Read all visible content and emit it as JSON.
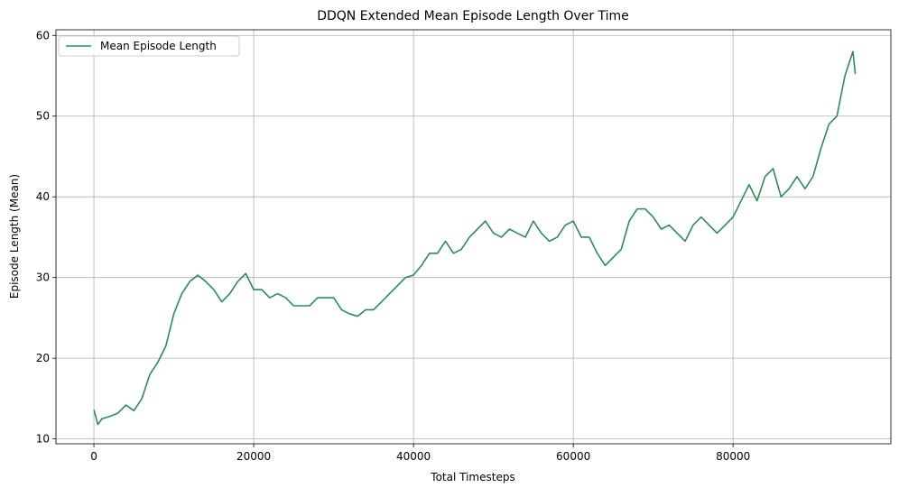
{
  "chart_data": {
    "type": "line",
    "title": "DDQN Extended Mean Episode Length Over Time",
    "x_label": "Total Timesteps",
    "y_label": "Episode Length (Mean)",
    "x": [
      0,
      500,
      1000,
      2000,
      3000,
      4000,
      5000,
      6000,
      7000,
      8000,
      9000,
      10000,
      11000,
      12000,
      13000,
      14000,
      15000,
      16000,
      17000,
      18000,
      19000,
      20000,
      21000,
      22000,
      23000,
      24000,
      25000,
      26000,
      27000,
      28000,
      29000,
      30000,
      31000,
      32000,
      33000,
      34000,
      35000,
      36000,
      37000,
      38000,
      39000,
      40000,
      41000,
      42000,
      43000,
      44000,
      45000,
      46000,
      47000,
      48000,
      49000,
      50000,
      51000,
      52000,
      53000,
      54000,
      55000,
      56000,
      57000,
      58000,
      59000,
      60000,
      61000,
      62000,
      63000,
      64000,
      65000,
      66000,
      67000,
      68000,
      69000,
      70000,
      71000,
      72000,
      73000,
      74000,
      75000,
      76000,
      77000,
      78000,
      79000,
      80000,
      81000,
      82000,
      83000,
      84000,
      85000,
      86000,
      87000,
      88000,
      89000,
      90000,
      91000,
      92000,
      93000,
      94000,
      95000,
      95300
    ],
    "series": [
      {
        "name": "Mean Episode Length",
        "color": "#2e8b57",
        "values": [
          13.6,
          11.8,
          12.5,
          12.8,
          13.2,
          14.2,
          13.5,
          15,
          18,
          19.5,
          21.5,
          25.5,
          28,
          29.5,
          30.3,
          29.5,
          28.5,
          27,
          28,
          29.5,
          30.5,
          28.5,
          28.5,
          27.5,
          28,
          27.5,
          26.5,
          26.5,
          26.5,
          27.5,
          27.5,
          27.5,
          26,
          25.5,
          25.2,
          26,
          26,
          27,
          28,
          29,
          30,
          30.3,
          31.5,
          33,
          33,
          34.5,
          33,
          33.5,
          35,
          36,
          37,
          35.5,
          35,
          36,
          35.5,
          35,
          37,
          35.5,
          34.5,
          35,
          36.5,
          37,
          35,
          35,
          33,
          31.5,
          32.5,
          33.5,
          37,
          38.5,
          38.5,
          37.5,
          36,
          36.5,
          35.5,
          34.5,
          36.5,
          37.5,
          36.5,
          35.5,
          36.5,
          37.5,
          39.5,
          41.5,
          39.5,
          42.5,
          43.5,
          40,
          41,
          42.5,
          41,
          42.5,
          46,
          49,
          50,
          55,
          58,
          55.2
        ]
      }
    ],
    "xlim": [
      -4750,
      99750
    ],
    "xticks": [
      0,
      20000,
      40000,
      60000,
      80000
    ],
    "ylim": [
      9.4,
      60.7
    ],
    "yticks": [
      10,
      20,
      30,
      40,
      50,
      60
    ],
    "grid": true,
    "legend": "upper left"
  }
}
